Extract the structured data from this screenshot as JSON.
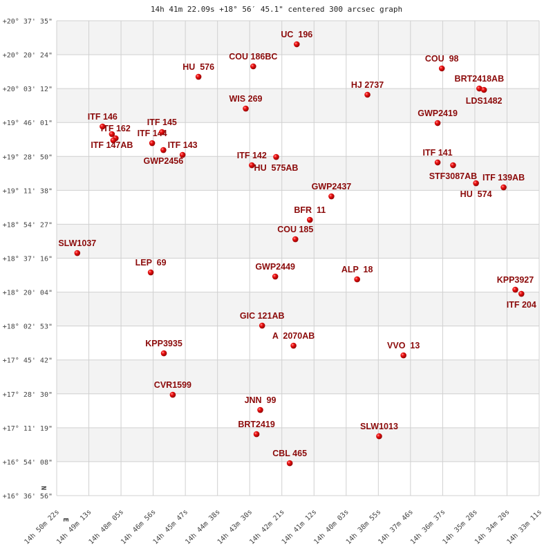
{
  "chart_data": {
    "type": "scatter",
    "title": "14h 41m 22.09s +18° 56′ 45.1\" centered 300 arcsec graph",
    "xlim": [
      "14:50:22",
      "14:33:11"
    ],
    "ylim": [
      "+16:36:56",
      "+20:37:35"
    ],
    "x_ticks": [
      "14h 50m 22s",
      "14h 49m 13s",
      "14h 48m 05s",
      "14h 46m 56s",
      "14h 45m 47s",
      "14h 44m 38s",
      "14h 43m 30s",
      "14h 42m 21s",
      "14h 41m 12s",
      "14h 40m 03s",
      "14h 38m 55s",
      "14h 37m 46s",
      "14h 36m 37s",
      "14h 35m 28s",
      "14h 34m 20s",
      "14h 33m 11s"
    ],
    "y_ticks": [
      "+20° 37' 35\"",
      "+20° 20' 24\"",
      "+20° 03' 12\"",
      "+19° 46' 01\"",
      "+19° 28' 50\"",
      "+19° 11' 38\"",
      "+18° 54' 27\"",
      "+18° 37' 16\"",
      "+18° 20' 04\"",
      "+18° 02' 53\"",
      "+17° 45' 42\"",
      "+17° 28' 30\"",
      "+17° 11' 19\"",
      "+16° 54' 08\"",
      "+16° 36' 56\""
    ],
    "grid": true,
    "compass": {
      "north": "N",
      "east": "E"
    },
    "colors": {
      "point": "#dd0000",
      "label": "#8b0a0a",
      "band": "#f3f3f3",
      "grid": "#d0d0d0"
    },
    "points": [
      {
        "name": "UC  196",
        "ra": "14:41:49",
        "dec": "+20:25:40"
      },
      {
        "name": "COU 186BC",
        "ra": "14:43:22",
        "dec": "+20:14:28"
      },
      {
        "name": "HU  576",
        "ra": "14:45:19",
        "dec": "+20:09:12"
      },
      {
        "name": "HJ 2737",
        "ra": "14:39:18",
        "dec": "+20:00:06"
      },
      {
        "name": "WIS 269",
        "ra": "14:43:38",
        "dec": "+19:53:05"
      },
      {
        "name": "COU  98",
        "ra": "14:36:39",
        "dec": "+20:13:25"
      },
      {
        "name": "BRT2418AB",
        "ra": "14:35:19",
        "dec": "+20:03:15"
      },
      {
        "name": "LDS1482",
        "ra": "14:35:09",
        "dec": "+20:02:33"
      },
      {
        "name": "GWP2419",
        "ra": "14:36:48",
        "dec": "+19:45:44"
      },
      {
        "name": "ITF 146",
        "ra": "14:48:44",
        "dec": "+19:43:59"
      },
      {
        "name": "ITF 147AB",
        "ra": "14:48:24",
        "dec": "+19:40:08"
      },
      {
        "name": "ITF 162",
        "ra": "14:48:16",
        "dec": "+19:38:02"
      },
      {
        "name": "",
        "ra": "14:48:21",
        "dec": "+19:36:58"
      },
      {
        "name": "ITF 145",
        "ra": "14:46:37",
        "dec": "+19:41:11"
      },
      {
        "name": "ITF 144",
        "ra": "14:46:58",
        "dec": "+19:35:34"
      },
      {
        "name": "GWP2456",
        "ra": "14:46:34",
        "dec": "+19:32:04"
      },
      {
        "name": "ITF 143",
        "ra": "14:45:53",
        "dec": "+19:29:37"
      },
      {
        "name": "ITF 142",
        "ra": "14:43:25",
        "dec": "+19:24:22"
      },
      {
        "name": "HU  575AB",
        "ra": "14:42:33",
        "dec": "+19:28:34"
      },
      {
        "name": "ITF 141",
        "ra": "14:36:48",
        "dec": "+19:25:46"
      },
      {
        "name": "STF3087AB",
        "ra": "14:36:15",
        "dec": "+19:24:22"
      },
      {
        "name": "HU  574",
        "ra": "14:35:26",
        "dec": "+19:15:15"
      },
      {
        "name": "ITF 139AB",
        "ra": "14:34:27",
        "dec": "+19:13:09"
      },
      {
        "name": "GWP2437",
        "ra": "14:40:35",
        "dec": "+19:08:36"
      },
      {
        "name": "BFR  11",
        "ra": "14:41:21",
        "dec": "+18:56:41"
      },
      {
        "name": "COU 185",
        "ra": "14:41:52",
        "dec": "+18:46:53"
      },
      {
        "name": "SLW1037",
        "ra": "14:49:38",
        "dec": "+18:39:52"
      },
      {
        "name": "LEP  69",
        "ra": "14:47:01",
        "dec": "+18:30:04"
      },
      {
        "name": "GWP2449",
        "ra": "14:42:35",
        "dec": "+18:27:58"
      },
      {
        "name": "ALP  18",
        "ra": "14:39:40",
        "dec": "+18:26:33"
      },
      {
        "name": "KPP3927",
        "ra": "14:34:02",
        "dec": "+18:21:18"
      },
      {
        "name": "ITF 204",
        "ra": "14:33:49",
        "dec": "+18:19:12"
      },
      {
        "name": "GIC 121AB",
        "ra": "14:43:03",
        "dec": "+18:03:05"
      },
      {
        "name": "A  2070AB",
        "ra": "14:41:56",
        "dec": "+17:52:56"
      },
      {
        "name": "KPP3935",
        "ra": "14:46:33",
        "dec": "+17:49:04"
      },
      {
        "name": "VVO  13",
        "ra": "14:38:01",
        "dec": "+17:48:01"
      },
      {
        "name": "CVR1599",
        "ra": "14:46:14",
        "dec": "+17:28:03"
      },
      {
        "name": "JNN  99",
        "ra": "14:43:07",
        "dec": "+17:20:21"
      },
      {
        "name": "BRT2419",
        "ra": "14:43:15",
        "dec": "+17:08:05"
      },
      {
        "name": "SLW1013",
        "ra": "14:38:53",
        "dec": "+17:07:02"
      },
      {
        "name": "CBL 465",
        "ra": "14:42:04",
        "dec": "+16:53:22"
      }
    ]
  }
}
